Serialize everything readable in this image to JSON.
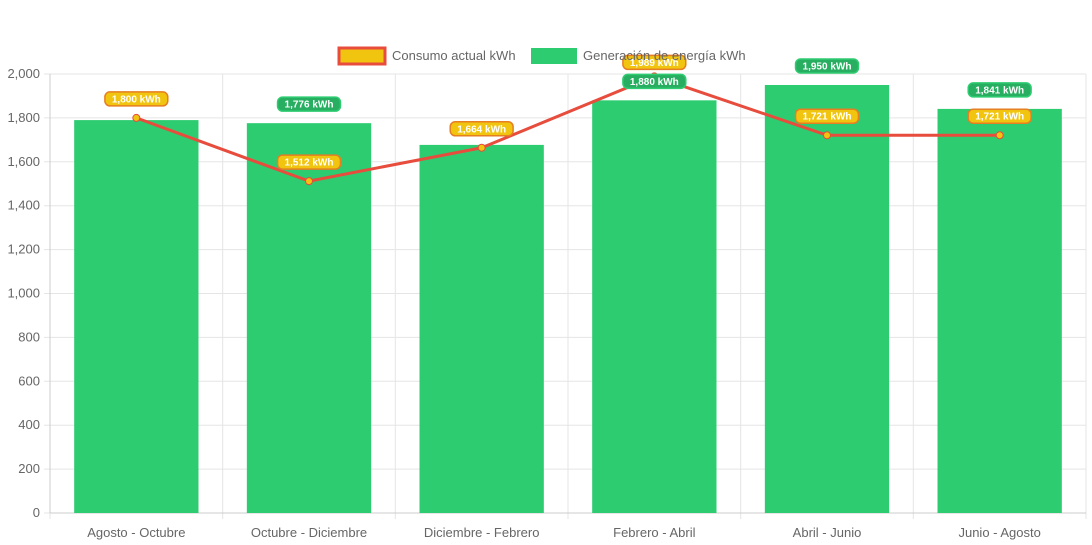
{
  "chart_data": {
    "type": "bar",
    "categories": [
      "Agosto - Octubre",
      "Octubre - Diciembre",
      "Diciembre - Febrero",
      "Febrero - Abril",
      "Abril - Junio",
      "Junio - Agosto"
    ],
    "series": [
      {
        "name": "Generación de energía kWh",
        "type": "bar",
        "values": [
          1790,
          1776,
          1677,
          1880,
          1950,
          1841
        ],
        "data_labels": [
          "",
          "1,776 kWh",
          "",
          "1,880 kWh",
          "1,950 kWh",
          "1,841 kWh"
        ],
        "color": "#2ecc71"
      },
      {
        "name": "Consumo actual kWh",
        "type": "line",
        "values": [
          1800,
          1512,
          1664,
          1989,
          1721,
          1721
        ],
        "data_labels": [
          "1,800 kWh",
          "1,512 kWh",
          "1,664 kWh",
          "1,989 kWh",
          "1,721 kWh",
          "1,721 kWh"
        ],
        "color": "#e74c3c",
        "point_color": "#f1c40f"
      }
    ],
    "ylim": [
      0,
      2000
    ],
    "yticks": [
      "0",
      "200",
      "400",
      "600",
      "800",
      "1,000",
      "1,200",
      "1,400",
      "1,600",
      "1,800",
      "2,000"
    ],
    "grid": true,
    "legend_position": "top"
  }
}
